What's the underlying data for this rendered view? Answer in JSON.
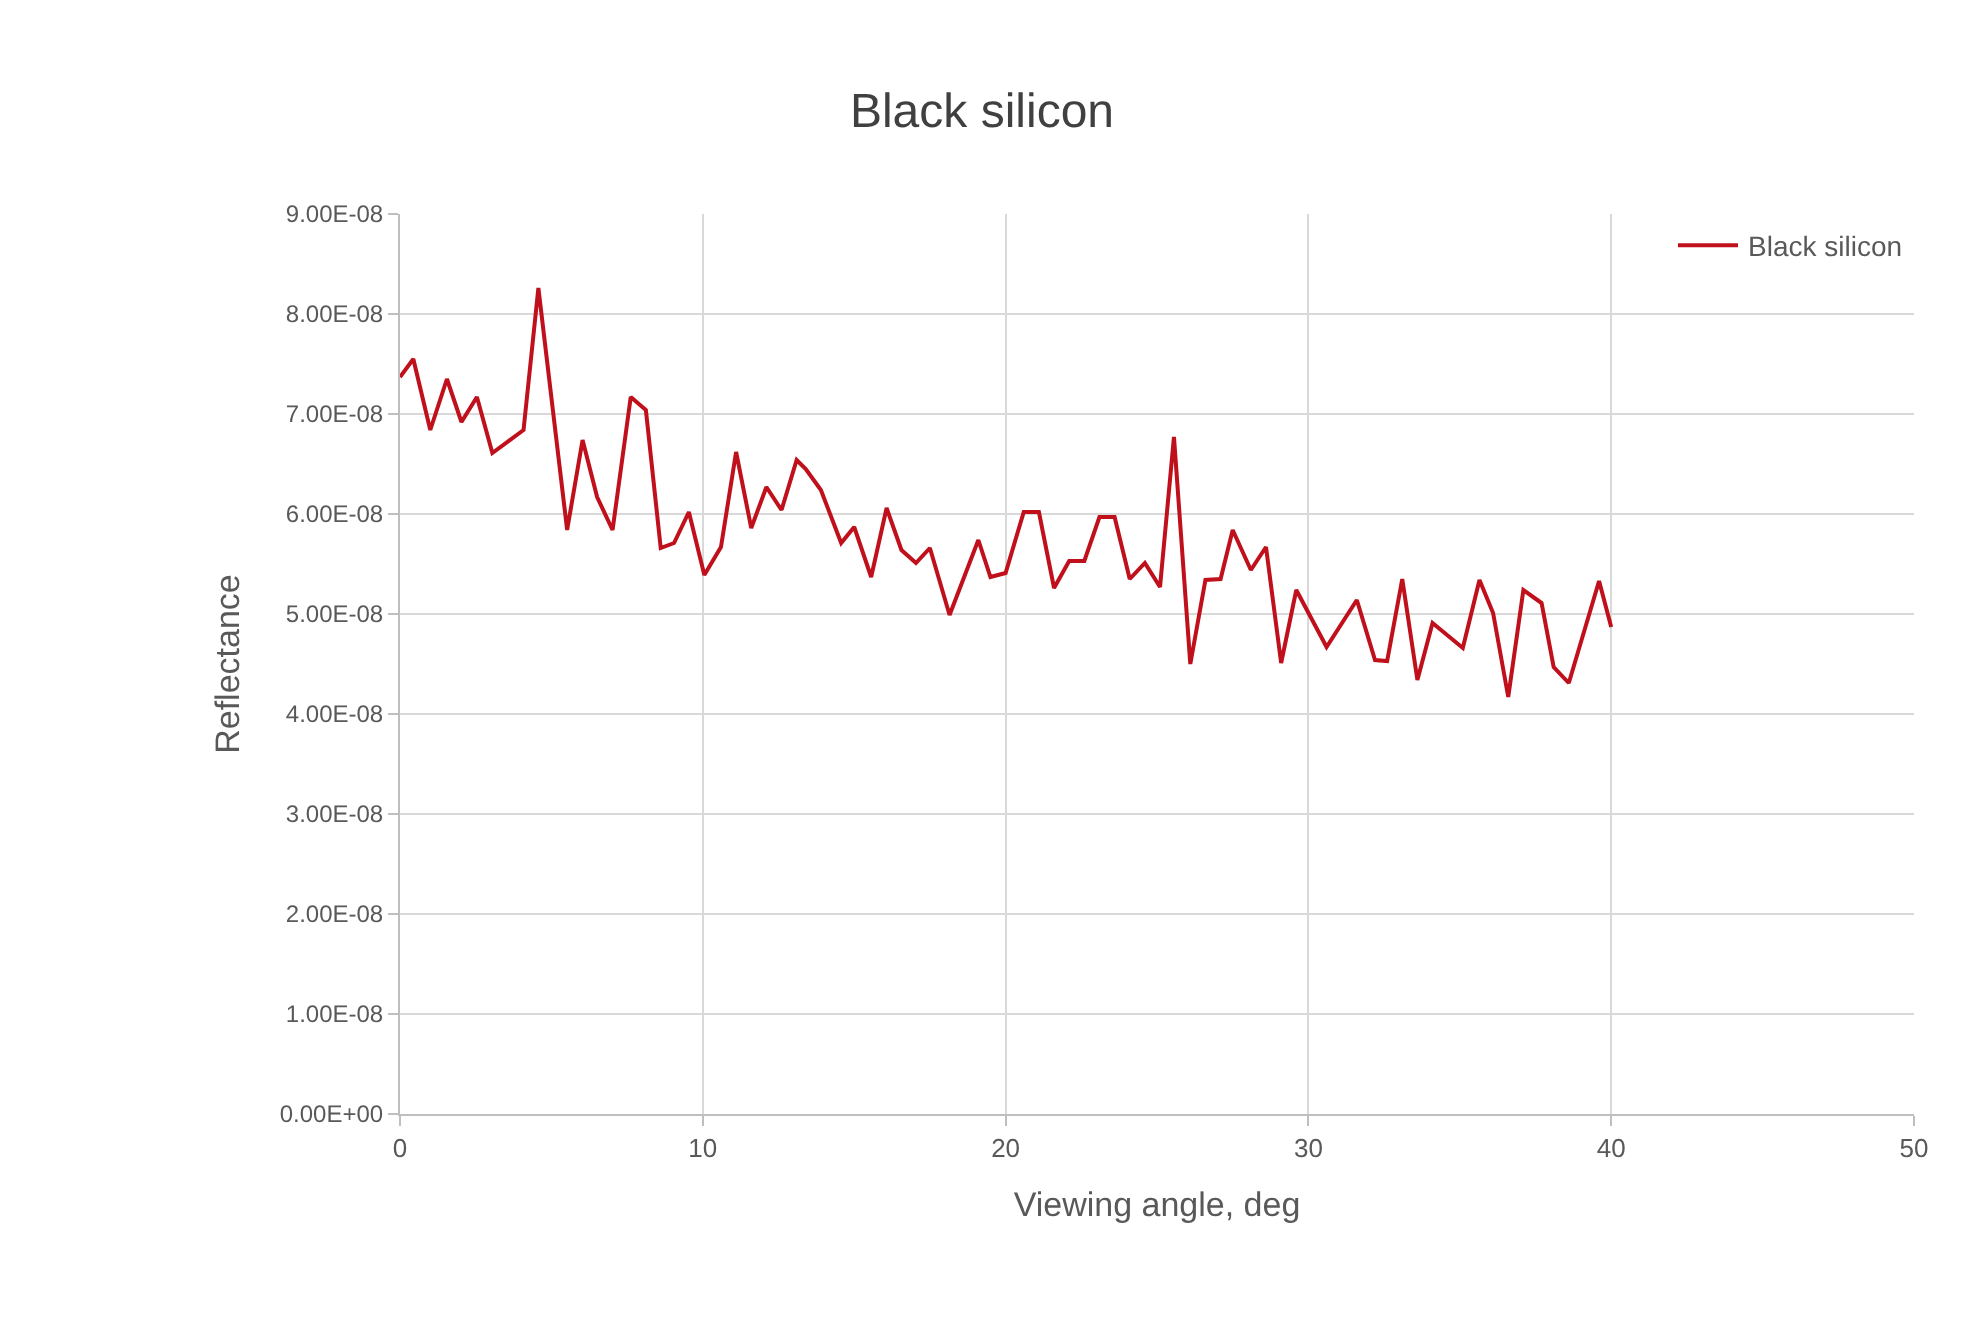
{
  "chart_data": {
    "type": "line",
    "title": "Black silicon",
    "xlabel": "Viewing angle, deg",
    "ylabel": "Reflectance",
    "x": [
      0,
      0.44,
      1.0,
      1.55,
      2.03,
      2.54,
      3.05,
      4.08,
      4.57,
      5.52,
      6.03,
      6.51,
      7.02,
      7.62,
      8.12,
      8.61,
      9.05,
      9.54,
      10.05,
      10.6,
      11.1,
      11.6,
      12.1,
      12.6,
      13.1,
      13.4,
      13.9,
      14.57,
      15.0,
      15.56,
      16.07,
      16.56,
      17.04,
      17.5,
      18.15,
      19.1,
      19.5,
      20.0,
      20.6,
      21.1,
      21.6,
      22.1,
      22.6,
      23.1,
      23.6,
      24.1,
      24.6,
      25.1,
      25.56,
      26.1,
      26.6,
      27.1,
      27.5,
      28.1,
      28.6,
      29.1,
      29.6,
      30.6,
      31.6,
      32.2,
      32.6,
      33.1,
      33.6,
      34.1,
      35.1,
      35.65,
      36.1,
      36.6,
      37.1,
      37.7,
      38.1,
      38.6,
      39.6,
      40.0
    ],
    "series": [
      {
        "name": "Black silicon",
        "color": "#c0101c",
        "values": [
          7.37e-08,
          7.55e-08,
          6.84e-08,
          7.35e-08,
          6.92e-08,
          7.17e-08,
          6.61e-08,
          6.84e-08,
          8.26e-08,
          5.84e-08,
          6.74e-08,
          6.17e-08,
          5.84e-08,
          7.17e-08,
          7.04e-08,
          5.66e-08,
          5.71e-08,
          6.02e-08,
          5.39e-08,
          5.67e-08,
          6.62e-08,
          5.86e-08,
          6.27e-08,
          6.04e-08,
          6.54e-08,
          6.45e-08,
          6.24e-08,
          5.71e-08,
          5.87e-08,
          5.37e-08,
          6.06e-08,
          5.64e-08,
          5.51e-08,
          5.66e-08,
          4.99e-08,
          5.74e-08,
          5.37e-08,
          5.41e-08,
          6.02e-08,
          6.02e-08,
          5.26e-08,
          5.53e-08,
          5.53e-08,
          5.97e-08,
          5.97e-08,
          5.35e-08,
          5.51e-08,
          5.27e-08,
          6.77e-08,
          4.5e-08,
          5.34e-08,
          5.35e-08,
          5.84e-08,
          5.44e-08,
          5.67e-08,
          4.51e-08,
          5.24e-08,
          4.67e-08,
          5.14e-08,
          4.54e-08,
          4.53e-08,
          5.35e-08,
          4.34e-08,
          4.91e-08,
          4.66e-08,
          5.34e-08,
          5.01e-08,
          4.17e-08,
          5.24e-08,
          5.11e-08,
          4.47e-08,
          4.31e-08,
          5.33e-08,
          4.87e-08
        ]
      }
    ],
    "xlim": [
      0,
      50
    ],
    "xticks": [
      0,
      10,
      20,
      30,
      40,
      50
    ],
    "ylim": [
      0,
      9e-08
    ],
    "yticks": [
      {
        "value": 0,
        "label": "0.00E+00"
      },
      {
        "value": 1e-08,
        "label": "1.00E-08"
      },
      {
        "value": 2e-08,
        "label": "2.00E-08"
      },
      {
        "value": 3e-08,
        "label": "3.00E-08"
      },
      {
        "value": 4e-08,
        "label": "4.00E-08"
      },
      {
        "value": 5e-08,
        "label": "5.00E-08"
      },
      {
        "value": 6e-08,
        "label": "6.00E-08"
      },
      {
        "value": 7e-08,
        "label": "7.00E-08"
      },
      {
        "value": 8e-08,
        "label": "8.00E-08"
      },
      {
        "value": 9e-08,
        "label": "9.00E-08"
      }
    ],
    "grid": true,
    "legend": "top right",
    "marker": "none",
    "line_style": "solid"
  }
}
